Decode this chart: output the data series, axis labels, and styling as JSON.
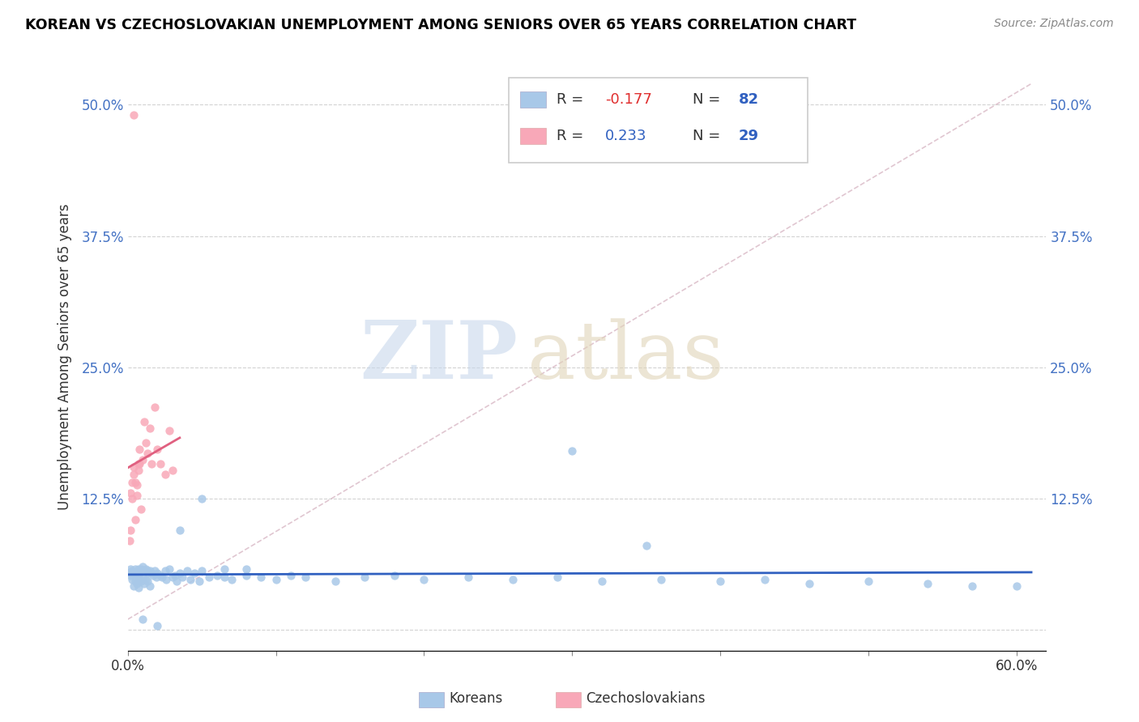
{
  "title": "KOREAN VS CZECHOSLOVAKIAN UNEMPLOYMENT AMONG SENIORS OVER 65 YEARS CORRELATION CHART",
  "source": "Source: ZipAtlas.com",
  "ylabel": "Unemployment Among Seniors over 65 years",
  "xlim": [
    0.0,
    0.62
  ],
  "ylim": [
    -0.02,
    0.54
  ],
  "xticks": [
    0.0,
    0.1,
    0.2,
    0.3,
    0.4,
    0.5,
    0.6
  ],
  "xticklabels": [
    "0.0%",
    "",
    "",
    "",
    "",
    "",
    "60.0%"
  ],
  "yticks": [
    0.0,
    0.125,
    0.25,
    0.375,
    0.5
  ],
  "yticklabels": [
    "",
    "12.5%",
    "25.0%",
    "37.5%",
    "50.0%"
  ],
  "korean_color": "#a8c8e8",
  "czech_color": "#f8a8b8",
  "korean_line_color": "#3060c0",
  "czech_line_color": "#e06080",
  "diag_line_color": "#d0a8b8",
  "korean_x": [
    0.001,
    0.002,
    0.002,
    0.003,
    0.003,
    0.004,
    0.004,
    0.005,
    0.005,
    0.006,
    0.006,
    0.007,
    0.007,
    0.007,
    0.008,
    0.008,
    0.009,
    0.009,
    0.01,
    0.01,
    0.011,
    0.011,
    0.012,
    0.012,
    0.013,
    0.013,
    0.014,
    0.015,
    0.015,
    0.016,
    0.017,
    0.018,
    0.019,
    0.02,
    0.022,
    0.023,
    0.025,
    0.026,
    0.028,
    0.03,
    0.032,
    0.033,
    0.035,
    0.037,
    0.04,
    0.042,
    0.045,
    0.048,
    0.05,
    0.055,
    0.06,
    0.065,
    0.07,
    0.08,
    0.09,
    0.1,
    0.11,
    0.12,
    0.14,
    0.16,
    0.18,
    0.2,
    0.23,
    0.26,
    0.29,
    0.32,
    0.36,
    0.4,
    0.43,
    0.46,
    0.5,
    0.54,
    0.57,
    0.6,
    0.035,
    0.05,
    0.065,
    0.08,
    0.3,
    0.35,
    0.01,
    0.02
  ],
  "korean_y": [
    0.055,
    0.052,
    0.058,
    0.048,
    0.056,
    0.054,
    0.042,
    0.058,
    0.046,
    0.054,
    0.044,
    0.058,
    0.052,
    0.04,
    0.056,
    0.048,
    0.058,
    0.046,
    0.06,
    0.05,
    0.056,
    0.044,
    0.058,
    0.048,
    0.056,
    0.046,
    0.054,
    0.056,
    0.042,
    0.054,
    0.052,
    0.056,
    0.05,
    0.054,
    0.052,
    0.05,
    0.056,
    0.048,
    0.058,
    0.05,
    0.052,
    0.046,
    0.054,
    0.05,
    0.056,
    0.048,
    0.054,
    0.046,
    0.056,
    0.05,
    0.052,
    0.05,
    0.048,
    0.052,
    0.05,
    0.048,
    0.052,
    0.05,
    0.046,
    0.05,
    0.052,
    0.048,
    0.05,
    0.048,
    0.05,
    0.046,
    0.048,
    0.046,
    0.048,
    0.044,
    0.046,
    0.044,
    0.042,
    0.042,
    0.095,
    0.125,
    0.058,
    0.058,
    0.17,
    0.08,
    0.01,
    0.004
  ],
  "czech_x": [
    0.001,
    0.002,
    0.002,
    0.003,
    0.003,
    0.004,
    0.004,
    0.005,
    0.005,
    0.006,
    0.006,
    0.007,
    0.007,
    0.008,
    0.008,
    0.009,
    0.01,
    0.011,
    0.012,
    0.013,
    0.015,
    0.016,
    0.018,
    0.02,
    0.022,
    0.025,
    0.028,
    0.03,
    0.004
  ],
  "czech_y": [
    0.085,
    0.095,
    0.13,
    0.14,
    0.125,
    0.155,
    0.148,
    0.14,
    0.105,
    0.138,
    0.128,
    0.158,
    0.152,
    0.172,
    0.158,
    0.115,
    0.162,
    0.198,
    0.178,
    0.168,
    0.192,
    0.158,
    0.212,
    0.172,
    0.158,
    0.148,
    0.19,
    0.152,
    0.49
  ]
}
